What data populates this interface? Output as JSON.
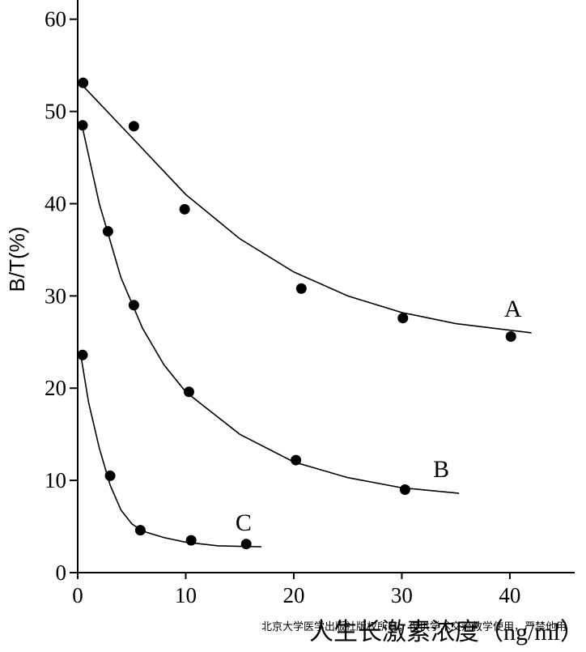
{
  "chart_data": {
    "type": "scatter",
    "y_label": "B/T(%)",
    "x_label": "人生长激素浓度（ng/ml）",
    "watermark": "北京大学医学出版社版权所有，仅供学术交流教学使用，严禁他用",
    "xlim": [
      0,
      46
    ],
    "ylim": [
      0,
      62
    ],
    "xticks": [
      0,
      10,
      20,
      30,
      40
    ],
    "yticks": [
      0,
      10,
      20,
      30,
      40,
      50,
      60
    ],
    "color": "#000000",
    "series": [
      {
        "name": "A",
        "x": [
          0.5,
          5.2,
          9.9,
          20.7,
          30.1,
          40.1
        ],
        "y": [
          53.1,
          48.4,
          39.4,
          30.8,
          27.6,
          25.6
        ],
        "fit": {
          "x": [
            0.3,
            5,
            10,
            15,
            20,
            25,
            30,
            35,
            42
          ],
          "y": [
            53,
            47.2,
            41,
            36.2,
            32.6,
            30,
            28.2,
            27,
            26
          ]
        }
      },
      {
        "name": "B",
        "x": [
          0.45,
          2.8,
          5.2,
          10.3,
          20.2,
          30.3
        ],
        "y": [
          48.5,
          37,
          29,
          19.6,
          12.2,
          9
        ],
        "fit": {
          "x": [
            0.3,
            2,
            4,
            6,
            8,
            10,
            15,
            20,
            25,
            30,
            35.3
          ],
          "y": [
            49,
            40,
            32,
            26.5,
            22.5,
            19.6,
            15,
            12,
            10.3,
            9.2,
            8.6
          ]
        }
      },
      {
        "name": "C",
        "x": [
          0.45,
          3,
          5.8,
          10.5,
          15.6
        ],
        "y": [
          23.6,
          10.5,
          4.6,
          3.5,
          3.1
        ],
        "fit": {
          "x": [
            0.3,
            1,
            2,
            3,
            4,
            5,
            6,
            8,
            10,
            13,
            17
          ],
          "y": [
            23.5,
            18.5,
            13.5,
            9.5,
            6.8,
            5.3,
            4.5,
            3.8,
            3.3,
            2.9,
            2.8
          ]
        }
      }
    ]
  }
}
